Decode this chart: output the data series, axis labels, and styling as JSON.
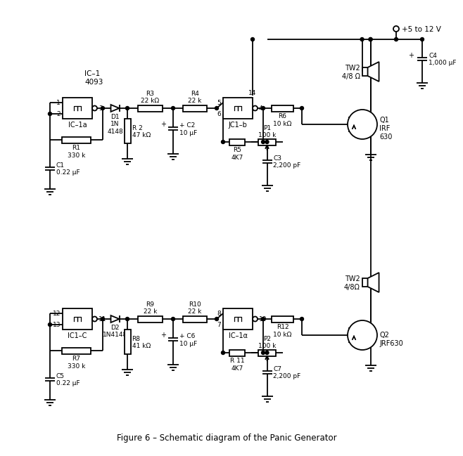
{
  "bg_color": "#ffffff",
  "line_color": "#000000",
  "lw": 1.3,
  "title": "Figure 6 – Schematic diagram of the Panic Generator",
  "vcc_label": "+5 to 12 V",
  "IC1a_label": "IC–1a",
  "IC1_label": "IC–1\n4093",
  "IC1c_label": "IC1–C",
  "IC1alpha_label": "IC–1α",
  "JC1b_label": "JC1–b",
  "R1_label": "R1\n330 k",
  "R2_label": "R 2\n47 kΩ",
  "R3_label": "R3\n22 kΩ",
  "R4_label": "R4\n22 k",
  "R5_label": "R5\n4K7",
  "R6_label": "R6\n10 kΩ",
  "R7_label": "R7\n330 k",
  "R8_label": "R8\n41 kΩ",
  "R9_label": "R9\n22 k",
  "R10_label": "R10\n22 k",
  "R11_label": "R 11\n4K7",
  "R12_label": "R12\n10 kΩ",
  "C1_label": "C1\n0.22 μF",
  "C2_label": "+ C2\n10 μF",
  "C3_label": "C3\n2,200 pF",
  "C4_label": "C4\n1,000 μF",
  "C5_label": "C5\n0.22 μF",
  "C6_label": "+ C6\n10 μF",
  "C7_label": "C7\n2,200 pF",
  "D1_label": "D1\n1N\n4148",
  "D2_label": "D2\n1N4148",
  "P1_label": "P1\n100 k",
  "P2_label": "P2\n100 k",
  "Q1_label": "Q1\nIRF\n630",
  "Q2_label": "Q2\nJRF630",
  "TW1_label": "TW2\n4/8 Ω",
  "TW2_label": "TW2\n4/8Ω"
}
